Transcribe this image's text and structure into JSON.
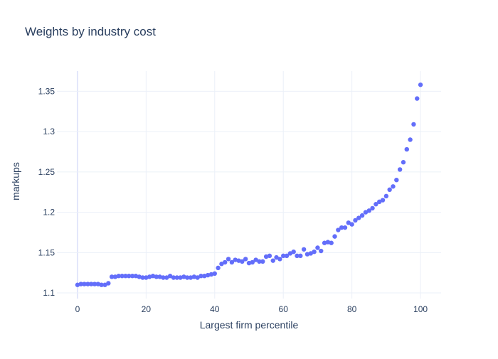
{
  "chart_data": {
    "type": "scatter",
    "title": "Weights by industry cost",
    "xlabel": "Largest firm percentile",
    "ylabel": "markups",
    "xlim": [
      -6,
      106
    ],
    "ylim": [
      1.093,
      1.375
    ],
    "x_ticks": [
      0,
      20,
      40,
      60,
      80,
      100
    ],
    "y_ticks": [
      1.1,
      1.15,
      1.2,
      1.25,
      1.3,
      1.35
    ],
    "y_tick_labels": [
      "1.1",
      "1.15",
      "1.2",
      "1.25",
      "1.3",
      "1.35"
    ],
    "grid": true,
    "legend": "none",
    "colors": {
      "marker": "#636efa",
      "grid": "#ebf0f8",
      "zero_line": "#e2e6fb",
      "text": "#2a3f5f",
      "tick_text": "#2a3f5f"
    },
    "series": [
      {
        "x": [
          0,
          1,
          2,
          3,
          4,
          5,
          6,
          7,
          8,
          9,
          10,
          11,
          12,
          13,
          14,
          15,
          16,
          17,
          18,
          19,
          20,
          21,
          22,
          23,
          24,
          25,
          26,
          27,
          28,
          29,
          30,
          31,
          32,
          33,
          34,
          35,
          36,
          37,
          38,
          39,
          40,
          41,
          42,
          43,
          44,
          45,
          46,
          47,
          48,
          49,
          50,
          51,
          52,
          53,
          54,
          55,
          56,
          57,
          58,
          59,
          60,
          61,
          62,
          63,
          64,
          65,
          66,
          67,
          68,
          69,
          70,
          71,
          72,
          73,
          74,
          75,
          76,
          77,
          78,
          79,
          80,
          81,
          82,
          83,
          84,
          85,
          86,
          87,
          88,
          89,
          90,
          91,
          92,
          93,
          94,
          95,
          96,
          97,
          98,
          99,
          100
        ],
        "y": [
          1.11,
          1.111,
          1.111,
          1.111,
          1.111,
          1.111,
          1.111,
          1.11,
          1.11,
          1.112,
          1.12,
          1.12,
          1.121,
          1.121,
          1.121,
          1.121,
          1.121,
          1.121,
          1.12,
          1.119,
          1.119,
          1.12,
          1.121,
          1.12,
          1.12,
          1.119,
          1.119,
          1.121,
          1.119,
          1.119,
          1.119,
          1.12,
          1.119,
          1.119,
          1.12,
          1.119,
          1.121,
          1.121,
          1.122,
          1.123,
          1.124,
          1.131,
          1.136,
          1.138,
          1.142,
          1.138,
          1.141,
          1.14,
          1.139,
          1.142,
          1.137,
          1.138,
          1.141,
          1.139,
          1.139,
          1.145,
          1.146,
          1.14,
          1.144,
          1.142,
          1.146,
          1.146,
          1.149,
          1.151,
          1.146,
          1.146,
          1.154,
          1.148,
          1.149,
          1.151,
          1.156,
          1.152,
          1.162,
          1.163,
          1.162,
          1.17,
          1.178,
          1.181,
          1.181,
          1.187,
          1.185,
          1.19,
          1.193,
          1.196,
          1.2,
          1.202,
          1.205,
          1.21,
          1.213,
          1.215,
          1.22,
          1.228,
          1.232,
          1.24,
          1.253,
          1.262,
          1.278,
          1.29,
          1.309,
          1.341,
          1.358
        ]
      }
    ]
  }
}
